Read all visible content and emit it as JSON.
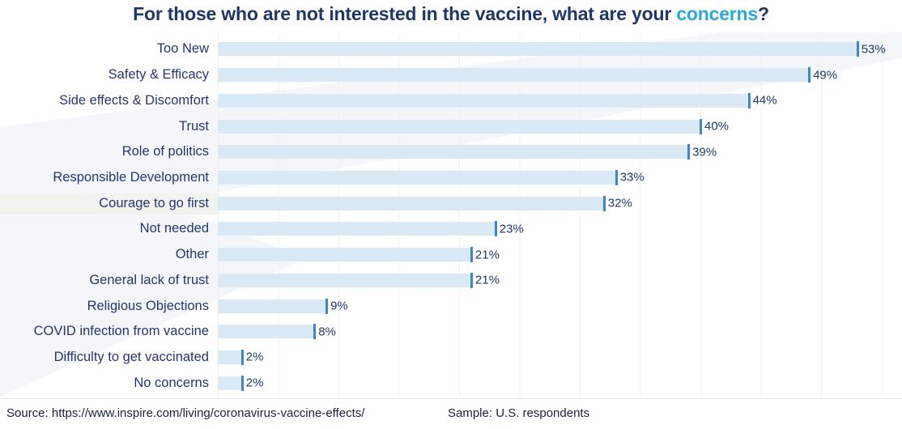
{
  "title": {
    "prefix": "For those who are not interested in the vaccine, what are your ",
    "highlight": "concerns",
    "suffix": "?",
    "prefix_color": "#1e3668",
    "highlight_color": "#2ba7e0"
  },
  "chart_data": {
    "type": "bar",
    "orientation": "horizontal",
    "title": "For those who are not interested in the vaccine, what are your concerns?",
    "categories": [
      "Too New",
      "Safety & Efficacy",
      "Side effects & Discomfort",
      "Trust",
      "Role of politics",
      "Responsible Development",
      "Courage to go first",
      "Not needed",
      "Other",
      "General lack of trust",
      "Religious Objections",
      "COVID infection from vaccine",
      "Difficulty to get vaccinated",
      "No concerns"
    ],
    "values": [
      53,
      49,
      44,
      40,
      39,
      33,
      32,
      23,
      21,
      21,
      9,
      8,
      2,
      2
    ],
    "value_labels": [
      "53%",
      "49%",
      "44%",
      "40%",
      "39%",
      "33%",
      "32%",
      "23%",
      "21%",
      "21%",
      "9%",
      "8%",
      "2%",
      "2%"
    ],
    "unit": "%",
    "xlim": [
      0,
      57
    ],
    "gridlines": {
      "show": true,
      "interval": 5,
      "color": "#edf1f6"
    },
    "legend": "none",
    "bar_color": "#d9eaf6",
    "tick_color": "#3e86c9",
    "value_label_color": "#1f3a70",
    "category_label_color": "#24366e",
    "highlighted_category": "Courage to go first",
    "highlight_index": 6,
    "highlight_color": "#f2f2ee"
  },
  "footer": {
    "source": "Source: https://www.inspire.com/living/coronavirus-vaccine-effects/",
    "sample": "Sample: U.S. respondents"
  }
}
